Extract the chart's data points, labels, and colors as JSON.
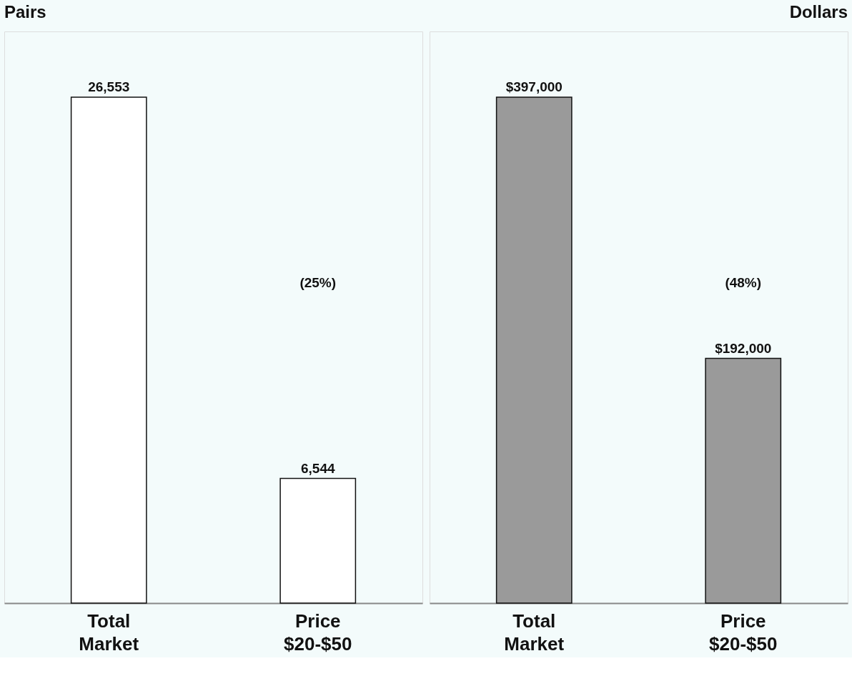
{
  "chart_data": [
    {
      "type": "bar",
      "title": "Pairs",
      "categories": [
        "Total Market",
        "Price $20-$50"
      ],
      "series": [
        {
          "color": "#ffffff",
          "values": [
            26553,
            6544
          ],
          "value_labels": [
            "26,553",
            "6,544"
          ]
        }
      ],
      "annotations": [
        "(25%)"
      ],
      "tick_labels": "x"
    },
    {
      "type": "bar",
      "title": "Dollars",
      "categories": [
        "Total Market",
        "Price $20-$50"
      ],
      "series": [
        {
          "color": "#9a9a9a",
          "values": [
            397000,
            192000
          ],
          "value_labels": [
            "$397,000",
            "$192,000"
          ]
        }
      ],
      "annotations": [
        "(48%)"
      ],
      "tick_labels": "x"
    }
  ]
}
